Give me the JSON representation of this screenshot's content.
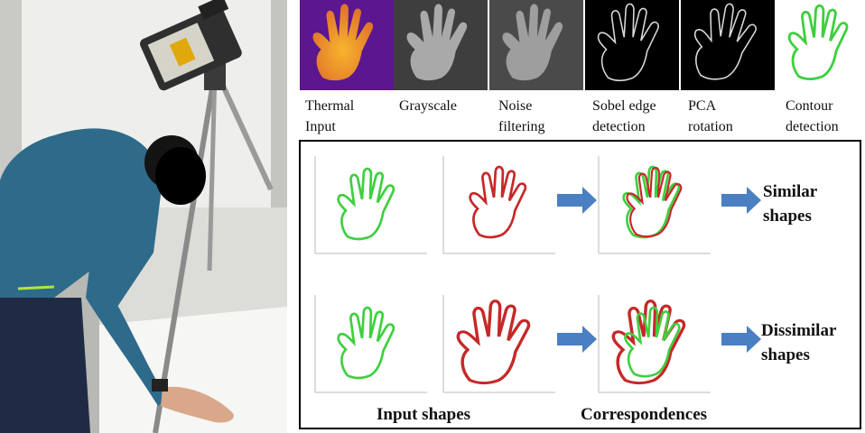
{
  "pipeline": {
    "steps": [
      {
        "label": "Thermal\nInput"
      },
      {
        "label": "Grayscale"
      },
      {
        "label": "Noise\nfiltering"
      },
      {
        "label": "Sobel edge\ndetection"
      },
      {
        "label": "PCA\nrotation"
      },
      {
        "label": "Contour\ndetection"
      }
    ]
  },
  "comparison": {
    "rows": [
      {
        "result_label": "Similar\nshapes"
      },
      {
        "result_label": "Dissimilar\nshapes"
      }
    ],
    "bottom_labels": {
      "input": "Input shapes",
      "correspondences": "Correspondences"
    }
  },
  "colors": {
    "thermal_bg": "#5b1690",
    "thermal_hand": "#f5a623",
    "contour_green": "#3fcf3f",
    "contour_red": "#c62828",
    "arrow_blue": "#4a7fc1"
  }
}
